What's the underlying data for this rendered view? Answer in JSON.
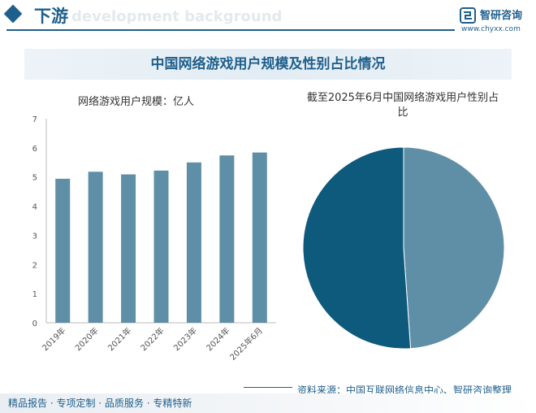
{
  "header": {
    "section_title": "下游",
    "background_text": "development background",
    "brand_name": "智研咨询",
    "brand_url": "www.chyxx.com"
  },
  "main_title": "中国网络游戏用户规模及性别占比情况",
  "left_chart": {
    "subtitle": "网络游戏用户规模：亿人"
  },
  "right_chart": {
    "subtitle": "截至2025年6月中国网络游戏用户性别占比"
  },
  "footer": {
    "left_text": "精品报告 · 专项定制 · 品质服务 · 专精特新",
    "source": "资料来源：中国互联网络信息中心、智研咨询整理"
  },
  "colors": {
    "brand": "#1f5f8b",
    "bar": "#5f8fa6",
    "pie_light": "#5f8fa6",
    "pie_dark": "#0e5a7c"
  },
  "chart_data": [
    {
      "type": "bar",
      "title": "网络游戏用户规模：亿人",
      "categories": [
        "2019年",
        "2020年",
        "2021年",
        "2022年",
        "2023年",
        "2024年",
        "2025年6月"
      ],
      "values": [
        4.94,
        5.18,
        5.09,
        5.22,
        5.5,
        5.74,
        5.84
      ],
      "ylim": [
        0,
        7
      ],
      "yticks": [
        "0",
        "1",
        "2",
        "3",
        "4",
        "5",
        "6",
        "7"
      ],
      "grid": false
    },
    {
      "type": "pie",
      "title": "截至2025年6月中国网络游戏用户性别占比",
      "values": [
        48.9,
        51.1
      ],
      "legend": "none"
    }
  ]
}
